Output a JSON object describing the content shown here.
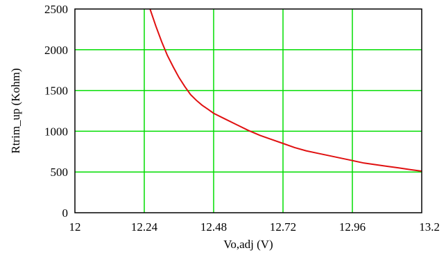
{
  "chart_data": {
    "type": "line",
    "title": "",
    "xlabel": "Vo,adj (V)",
    "ylabel": "Rtrim_up (Kohm)",
    "xlim": [
      12,
      13.2
    ],
    "ylim": [
      0,
      2500
    ],
    "x_ticks": [
      "12",
      "12.24",
      "12.48",
      "12.72",
      "12.96",
      "13.2"
    ],
    "y_ticks": [
      "0",
      "500",
      "1000",
      "1500",
      "2000",
      "2500"
    ],
    "grid": true,
    "colors": {
      "series": "#e01010",
      "grid": "#00dd00",
      "axes": "#000000"
    },
    "series": [
      {
        "x": [
          12.26,
          12.28,
          12.3,
          12.32,
          12.34,
          12.36,
          12.38,
          12.4,
          12.42,
          12.44,
          12.46,
          12.48,
          12.52,
          12.56,
          12.6,
          12.64,
          12.68,
          12.72,
          12.76,
          12.8,
          12.84,
          12.88,
          12.92,
          12.96,
          13.0,
          13.04,
          13.08,
          13.12,
          13.16,
          13.2
        ],
        "y": [
          2500,
          2290,
          2100,
          1930,
          1790,
          1660,
          1550,
          1450,
          1380,
          1320,
          1270,
          1220,
          1150,
          1080,
          1010,
          950,
          900,
          850,
          800,
          760,
          730,
          700,
          670,
          640,
          610,
          590,
          570,
          550,
          530,
          510
        ]
      }
    ]
  }
}
